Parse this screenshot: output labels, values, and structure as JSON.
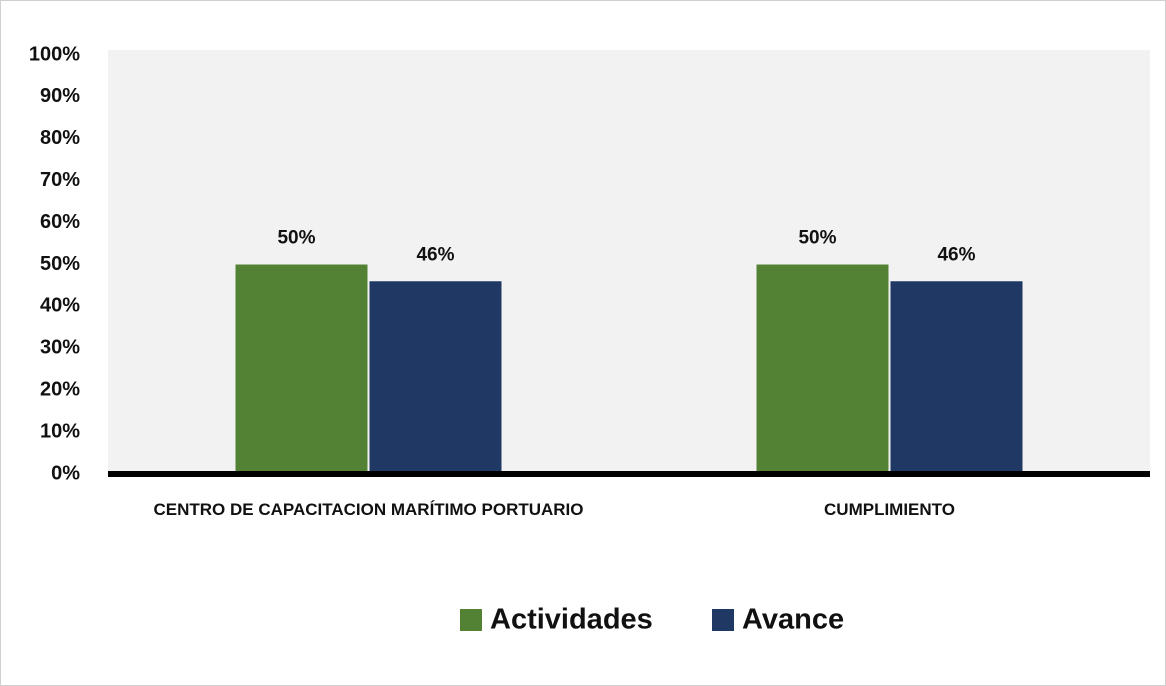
{
  "chart_data": {
    "type": "bar",
    "categories": [
      "CENTRO DE CAPACITACION MARÍTIMO PORTUARIO",
      "CUMPLIMIENTO"
    ],
    "series": [
      {
        "name": "Actividades",
        "color": "#548235",
        "values": [
          50,
          50
        ],
        "value_labels": [
          "50%",
          "50%"
        ]
      },
      {
        "name": "Avance",
        "color": "#203864",
        "values": [
          46,
          46
        ],
        "value_labels": [
          "46%",
          "46%"
        ]
      }
    ],
    "ylim": [
      0,
      100
    ],
    "yticks": [
      {
        "value": 0,
        "label": "0%"
      },
      {
        "value": 10,
        "label": "10%"
      },
      {
        "value": 20,
        "label": "20%"
      },
      {
        "value": 30,
        "label": "30%"
      },
      {
        "value": 40,
        "label": "40%"
      },
      {
        "value": 50,
        "label": "50%"
      },
      {
        "value": 60,
        "label": "60%"
      },
      {
        "value": 70,
        "label": "70%"
      },
      {
        "value": 80,
        "label": "80%"
      },
      {
        "value": 90,
        "label": "90%"
      },
      {
        "value": 100,
        "label": "100%"
      }
    ],
    "grid": false,
    "legend": "bottom"
  }
}
